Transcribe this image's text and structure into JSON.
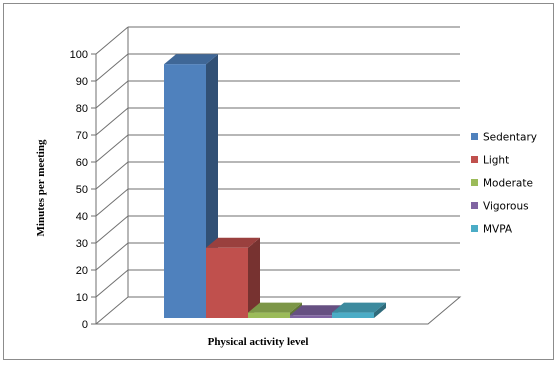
{
  "chart_data": {
    "type": "bar",
    "xlabel": "Physical activity level",
    "ylabel": "Minutes per meeting",
    "ylim": [
      0,
      100
    ],
    "y_ticks": [
      "0",
      "10",
      "20",
      "30",
      "40",
      "50",
      "60",
      "70",
      "80",
      "90",
      "100"
    ],
    "grid": true,
    "three_d": true,
    "legend_position": "right",
    "series": [
      {
        "name": "Sedentary",
        "value": 94,
        "color": "#4F81BD"
      },
      {
        "name": "Light",
        "value": 26,
        "color": "#C0504D"
      },
      {
        "name": "Moderate",
        "value": 2,
        "color": "#9BBB59"
      },
      {
        "name": "Vigorous",
        "value": 1,
        "color": "#8064A2"
      },
      {
        "name": "MVPA",
        "value": 2,
        "color": "#4BACC6"
      }
    ]
  }
}
